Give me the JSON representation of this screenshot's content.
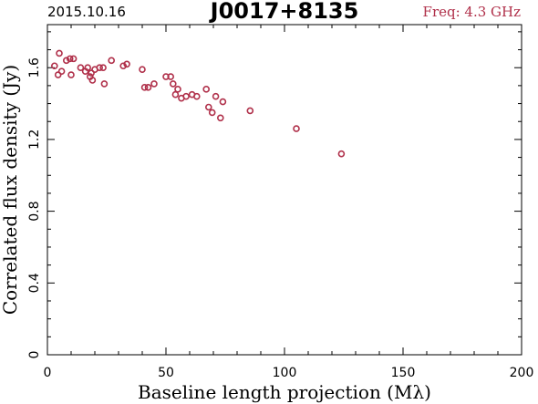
{
  "header": {
    "date": "2015.10.16",
    "source": "J0017+8135",
    "freq": "Freq: 4.3 GHz"
  },
  "colors": {
    "marker": "#b0304a",
    "freq_text": "#b0304a",
    "axis": "#000000"
  },
  "chart_data": {
    "type": "scatter",
    "xlabel": "Baseline length projection (Mλ)",
    "ylabel": "Correlated flux density (Jy)",
    "xlim": [
      0,
      200
    ],
    "ylim": [
      0,
      1.84
    ],
    "xticks": [
      0,
      50,
      100,
      150,
      200
    ],
    "xtick_labels": [
      "0",
      "50",
      "100",
      "150",
      "200"
    ],
    "yticks": [
      0,
      0.4,
      0.8,
      1.2,
      1.6
    ],
    "ytick_labels": [
      "0",
      "0.4",
      "0.8",
      "1.2",
      "1.6"
    ],
    "marker": "open-circle",
    "points": [
      [
        3,
        1.61
      ],
      [
        4.5,
        1.56
      ],
      [
        5,
        1.68
      ],
      [
        6,
        1.58
      ],
      [
        8,
        1.64
      ],
      [
        9.5,
        1.65
      ],
      [
        10,
        1.56
      ],
      [
        11,
        1.65
      ],
      [
        14,
        1.6
      ],
      [
        16,
        1.58
      ],
      [
        17,
        1.6
      ],
      [
        18,
        1.55
      ],
      [
        18.5,
        1.57
      ],
      [
        19,
        1.53
      ],
      [
        20,
        1.59
      ],
      [
        22,
        1.6
      ],
      [
        23.5,
        1.6
      ],
      [
        24,
        1.51
      ],
      [
        27,
        1.64
      ],
      [
        32,
        1.61
      ],
      [
        33.5,
        1.62
      ],
      [
        40,
        1.59
      ],
      [
        41,
        1.49
      ],
      [
        42.5,
        1.49
      ],
      [
        45,
        1.51
      ],
      [
        50,
        1.55
      ],
      [
        52,
        1.55
      ],
      [
        53,
        1.51
      ],
      [
        54,
        1.45
      ],
      [
        55,
        1.48
      ],
      [
        56.5,
        1.43
      ],
      [
        58.5,
        1.44
      ],
      [
        61,
        1.45
      ],
      [
        63,
        1.44
      ],
      [
        67,
        1.48
      ],
      [
        68,
        1.38
      ],
      [
        69.5,
        1.35
      ],
      [
        71,
        1.44
      ],
      [
        73,
        1.32
      ],
      [
        74,
        1.41
      ],
      [
        85.5,
        1.36
      ],
      [
        105,
        1.26
      ],
      [
        124,
        1.12
      ]
    ]
  }
}
